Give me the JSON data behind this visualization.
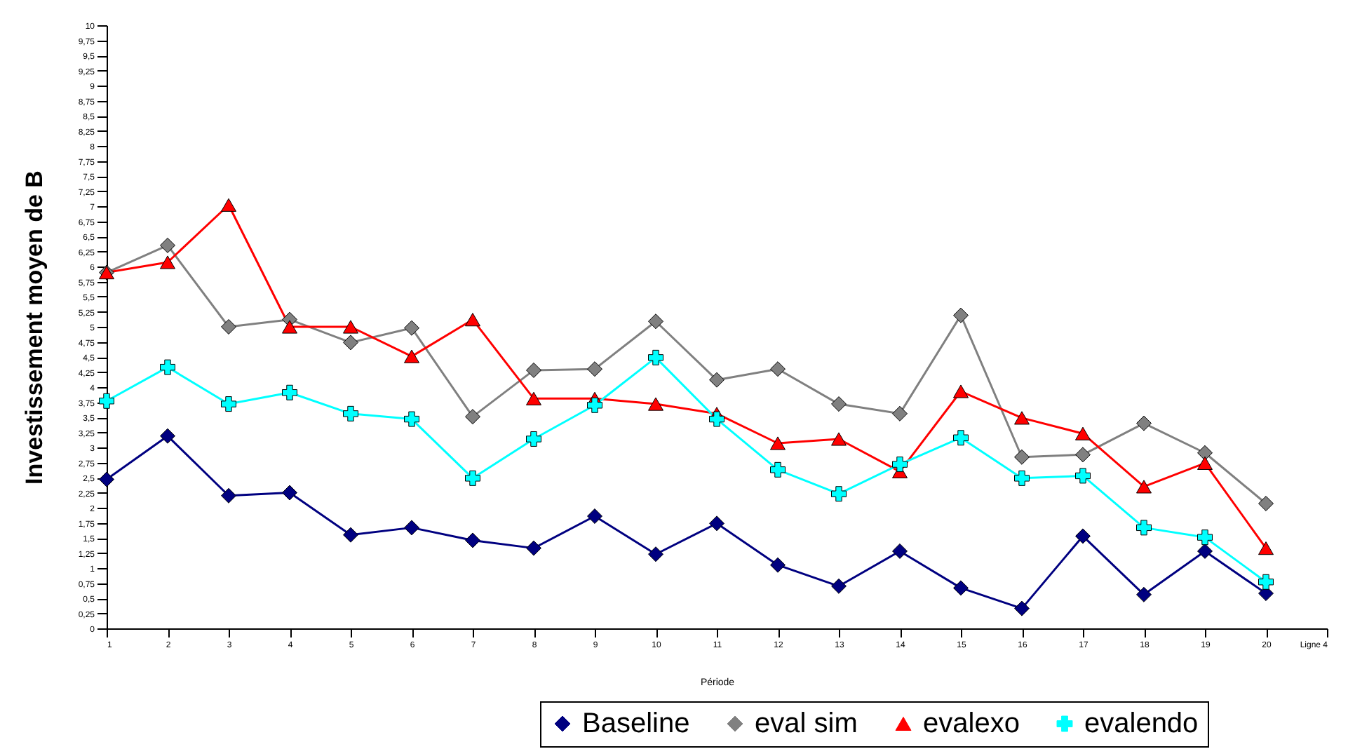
{
  "chart_data": {
    "type": "line",
    "xlabel": "Période",
    "ylabel": "Investissement moyen de B",
    "categories": [
      "1",
      "2",
      "3",
      "4",
      "5",
      "6",
      "7",
      "8",
      "9",
      "10",
      "11",
      "12",
      "13",
      "14",
      "15",
      "16",
      "17",
      "18",
      "19",
      "20",
      "Ligne 4"
    ],
    "series": [
      {
        "name": "Baseline",
        "color": "#000080",
        "marker": "diamond",
        "values": [
          2.47,
          3.19,
          2.2,
          2.25,
          1.55,
          1.67,
          1.46,
          1.33,
          1.86,
          1.23,
          1.74,
          1.05,
          0.7,
          1.28,
          0.67,
          0.33,
          1.53,
          0.56,
          1.28,
          0.58,
          null
        ]
      },
      {
        "name": "eval sim",
        "color": "#808080",
        "marker": "diamond",
        "values": [
          5.9,
          6.35,
          5.0,
          5.12,
          4.74,
          4.98,
          3.51,
          4.28,
          4.3,
          5.09,
          4.12,
          4.3,
          3.72,
          3.56,
          5.19,
          2.84,
          2.88,
          3.4,
          2.91,
          2.07,
          null
        ]
      },
      {
        "name": "evalexo",
        "color": "#ff0000",
        "marker": "triangle",
        "values": [
          5.9,
          6.07,
          7.02,
          5.0,
          5.0,
          4.51,
          5.12,
          3.81,
          3.81,
          3.72,
          3.56,
          3.07,
          3.14,
          2.6,
          3.93,
          3.49,
          3.23,
          2.35,
          2.74,
          1.33,
          null
        ]
      },
      {
        "name": "evalendo",
        "color": "#00ffff",
        "marker": "cross",
        "values": [
          3.77,
          4.33,
          3.72,
          3.91,
          3.56,
          3.47,
          2.49,
          3.14,
          3.7,
          4.49,
          3.47,
          2.63,
          2.23,
          2.72,
          3.16,
          2.49,
          2.53,
          1.67,
          1.51,
          0.77,
          null
        ]
      }
    ],
    "ylim": [
      0,
      10
    ],
    "yticks": [
      0,
      {
        "value": 0.25,
        "label": "0,25"
      },
      {
        "value": 0.5,
        "label": "0,5"
      },
      {
        "value": 0.75,
        "label": "0,75"
      },
      1,
      {
        "value": 1.25,
        "label": "1,25"
      },
      {
        "value": 1.5,
        "label": "1,5"
      },
      {
        "value": 1.75,
        "label": "1,75"
      },
      2,
      {
        "value": 2.25,
        "label": "2,25"
      },
      {
        "value": 2.5,
        "label": "2,5"
      },
      {
        "value": 2.75,
        "label": "2,75"
      },
      3,
      {
        "value": 3.25,
        "label": "3,25"
      },
      {
        "value": 3.5,
        "label": "3,5"
      },
      {
        "value": 3.75,
        "label": "3,75"
      },
      4,
      {
        "value": 4.25,
        "label": "4,25"
      },
      {
        "value": 4.5,
        "label": "4,5"
      },
      {
        "value": 4.75,
        "label": "4,75"
      },
      5,
      {
        "value": 5.25,
        "label": "5,25"
      },
      {
        "value": 5.5,
        "label": "5,5"
      },
      {
        "value": 5.75,
        "label": "5,75"
      },
      6,
      {
        "value": 6.25,
        "label": "6,25"
      },
      {
        "value": 6.5,
        "label": "6,5"
      },
      {
        "value": 6.75,
        "label": "6,75"
      },
      7,
      {
        "value": 7.25,
        "label": "7,25"
      },
      {
        "value": 7.5,
        "label": "7,5"
      },
      {
        "value": 7.75,
        "label": "7,75"
      },
      8,
      {
        "value": 8.25,
        "label": "8,25"
      },
      {
        "value": 8.5,
        "label": "8,5"
      },
      {
        "value": 8.75,
        "label": "8,75"
      },
      9,
      {
        "value": 9.25,
        "label": "9,25"
      },
      {
        "value": 9.5,
        "label": "9,5"
      },
      {
        "value": 9.75,
        "label": "9,75"
      },
      10
    ],
    "grid": false,
    "legend": "bottom right",
    "line_style": "solid"
  }
}
